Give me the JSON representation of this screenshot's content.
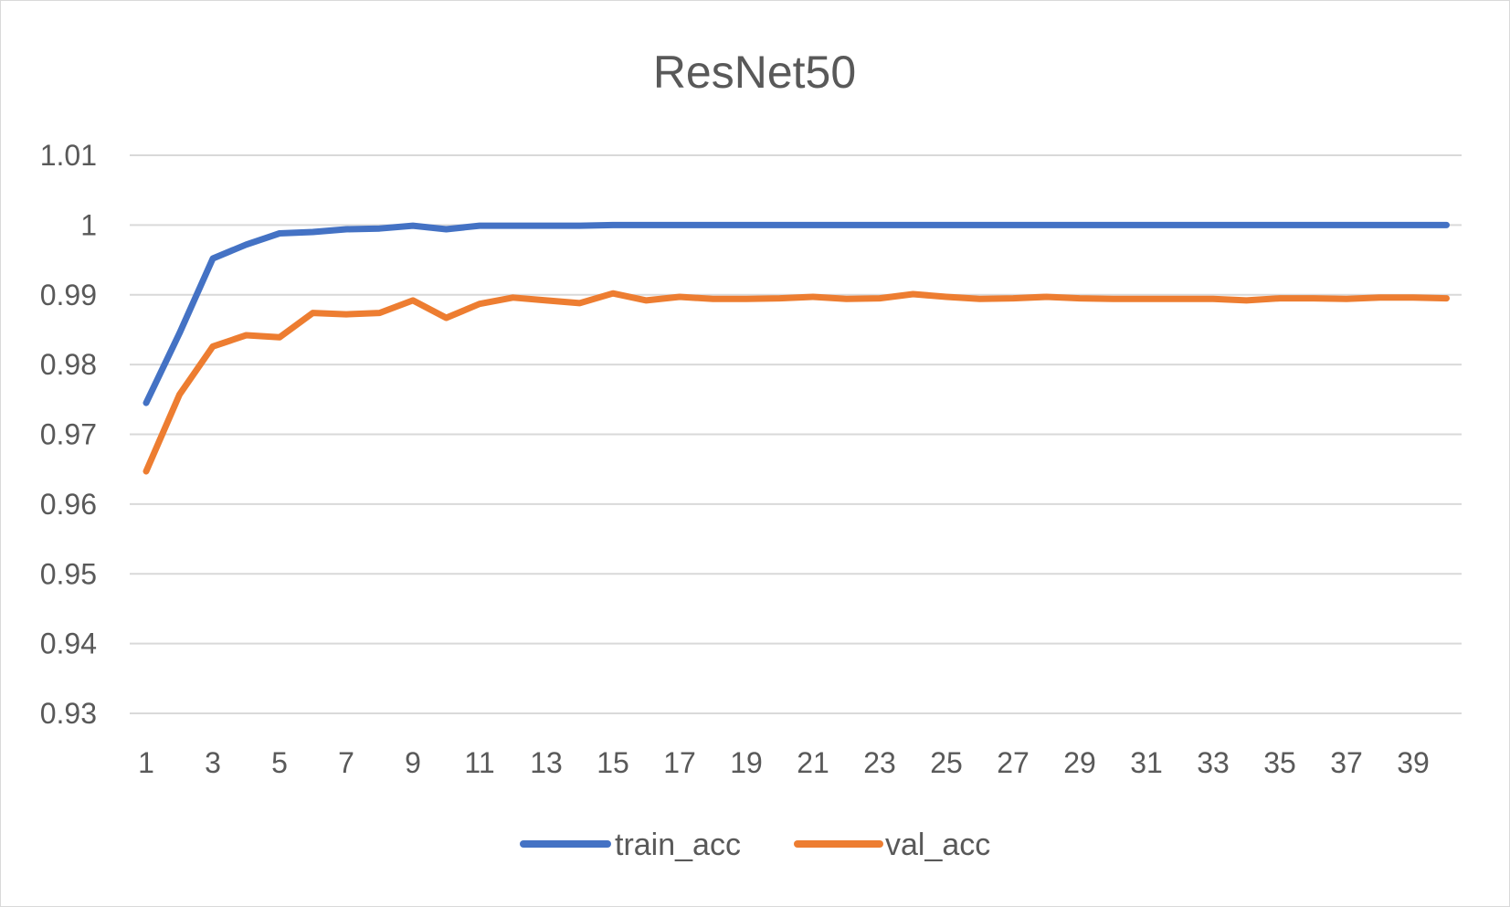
{
  "chart_data": {
    "type": "line",
    "title": "ResNet50",
    "xlabel": "",
    "ylabel": "",
    "x": [
      1,
      2,
      3,
      4,
      5,
      6,
      7,
      8,
      9,
      10,
      11,
      12,
      13,
      14,
      15,
      16,
      17,
      18,
      19,
      20,
      21,
      22,
      23,
      24,
      25,
      26,
      27,
      28,
      29,
      30,
      31,
      32,
      33,
      34,
      35,
      36,
      37,
      38,
      39,
      40
    ],
    "x_tick_labels": [
      "1",
      "3",
      "5",
      "7",
      "9",
      "11",
      "13",
      "15",
      "17",
      "19",
      "21",
      "23",
      "25",
      "27",
      "29",
      "31",
      "33",
      "35",
      "37",
      "39"
    ],
    "y_tick_labels": [
      "0.93",
      "0.94",
      "0.95",
      "0.96",
      "0.97",
      "0.98",
      "0.99",
      "1",
      "1.01"
    ],
    "ylim": [
      0.93,
      1.01
    ],
    "grid": true,
    "legend_position": "bottom",
    "series": [
      {
        "name": "train_acc",
        "color": "#4472C4",
        "values": [
          0.9745,
          0.9845,
          0.9952,
          0.9972,
          0.9988,
          0.999,
          0.9994,
          0.9995,
          0.9999,
          0.9994,
          0.9999,
          0.9999,
          0.9999,
          0.9999,
          1.0,
          1.0,
          1.0,
          1.0,
          1.0,
          1.0,
          1.0,
          1.0,
          1.0,
          1.0,
          1.0,
          1.0,
          1.0,
          1.0,
          1.0,
          1.0,
          1.0,
          1.0,
          1.0,
          1.0,
          1.0,
          1.0,
          1.0,
          1.0,
          1.0,
          1.0
        ]
      },
      {
        "name": "val_acc",
        "color": "#ED7D31",
        "values": [
          0.9647,
          0.9757,
          0.9826,
          0.9842,
          0.9839,
          0.9874,
          0.9872,
          0.9874,
          0.9892,
          0.9867,
          0.9887,
          0.9896,
          0.9892,
          0.9888,
          0.9902,
          0.9892,
          0.9897,
          0.9894,
          0.9894,
          0.9895,
          0.9897,
          0.9894,
          0.9895,
          0.9901,
          0.9897,
          0.9894,
          0.9895,
          0.9897,
          0.9895,
          0.9894,
          0.9894,
          0.9894,
          0.9894,
          0.9892,
          0.9895,
          0.9895,
          0.9894,
          0.9896,
          0.9896,
          0.9895
        ]
      }
    ]
  }
}
